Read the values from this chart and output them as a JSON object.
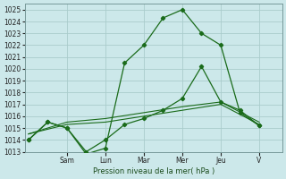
{
  "bg_color": "#cce8ea",
  "grid_color": "#aacccc",
  "line_color": "#1a6b1a",
  "ylabel": "Pression niveau de la mer( hPa )",
  "ylim": [
    1013,
    1025.5
  ],
  "yticks": [
    1013,
    1014,
    1015,
    1016,
    1017,
    1018,
    1019,
    1020,
    1021,
    1022,
    1023,
    1024,
    1025
  ],
  "day_labels": [
    "Sam",
    "Lun",
    "Mar",
    "Mer",
    "Jeu",
    "V"
  ],
  "day_positions": [
    2,
    4,
    6,
    8,
    10,
    12
  ],
  "xlim": [
    -0.2,
    13.2
  ],
  "series1_x": [
    0,
    1,
    2,
    3,
    4,
    5,
    6,
    7,
    8,
    9,
    10,
    11,
    12
  ],
  "series1_y": [
    1014.0,
    1015.5,
    1015.0,
    1012.8,
    1013.3,
    1020.5,
    1022.0,
    1024.3,
    1025.0,
    1023.0,
    1022.0,
    1016.3,
    1015.2
  ],
  "series2_x": [
    0,
    1,
    2,
    3,
    4,
    5,
    6,
    7,
    8,
    9,
    10,
    11,
    12
  ],
  "series2_y": [
    1014.0,
    1015.5,
    1015.0,
    1013.0,
    1014.0,
    1015.3,
    1015.8,
    1016.5,
    1017.5,
    1020.2,
    1017.2,
    1016.5,
    1015.2
  ],
  "series3_x": [
    0,
    2,
    4,
    6,
    8,
    10,
    12
  ],
  "series3_y": [
    1014.5,
    1015.3,
    1015.5,
    1016.0,
    1016.5,
    1017.0,
    1015.3
  ],
  "series4_x": [
    0,
    2,
    4,
    6,
    8,
    10,
    12
  ],
  "series4_y": [
    1014.5,
    1015.5,
    1015.8,
    1016.3,
    1016.8,
    1017.2,
    1015.5
  ]
}
